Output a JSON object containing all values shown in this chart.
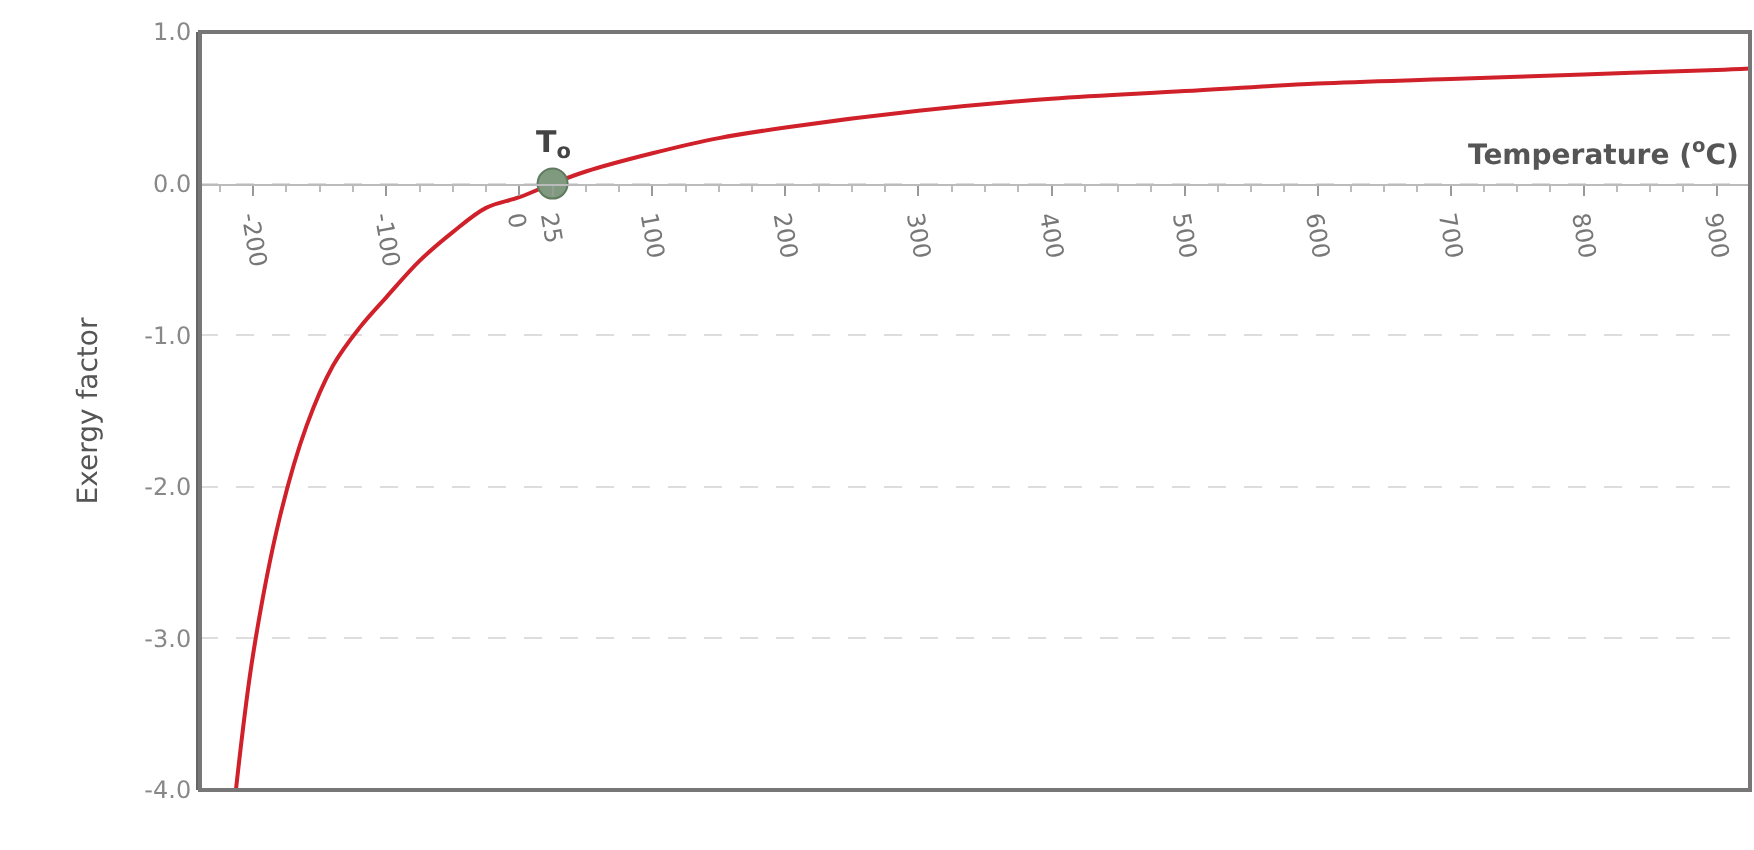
{
  "chart_data": {
    "type": "line",
    "xlabel": "Temperature ($^{o}$C)",
    "ylabel": "Exergy factor",
    "x": [
      -213,
      -200,
      -180,
      -160,
      -140,
      -120,
      -100,
      -75,
      -50,
      -25,
      0,
      25,
      50,
      100,
      150,
      200,
      300,
      400,
      500,
      600,
      700,
      800,
      900,
      925
    ],
    "series": [
      {
        "color": "#d0202a",
        "values": [
          -4.0,
          -3.1,
          -2.2,
          -1.6,
          -1.2,
          -0.95,
          -0.75,
          -0.51,
          -0.32,
          -0.16,
          -0.09,
          0,
          0.08,
          0.2,
          0.3,
          0.37,
          0.48,
          0.56,
          0.61,
          0.66,
          0.69,
          0.72,
          0.75,
          0.76
        ]
      },
      {
        "type": "scatter",
        "color": "#7f9a7f",
        "marker": "circle",
        "x": [
          25
        ],
        "values": [
          0
        ]
      }
    ],
    "annotations": [
      {
        "text": "T$_{o}$",
        "x": 25,
        "y": 0
      }
    ],
    "xlim": [
      -240,
      925
    ],
    "ylim": [
      -4.0,
      1.0
    ],
    "xticks": [
      -200,
      -100,
      0,
      25,
      100,
      200,
      300,
      400,
      500,
      600,
      700,
      800,
      900
    ],
    "yticks": [
      {
        "value": -4,
        "label": "-4.0"
      },
      {
        "value": -3,
        "label": "-3.0"
      },
      {
        "value": -2,
        "label": "-2.0"
      },
      {
        "value": -1,
        "label": "-1.0"
      },
      {
        "value": 0,
        "label": "0.0"
      },
      {
        "value": 1,
        "label": "1.0"
      }
    ],
    "grid": "y"
  }
}
